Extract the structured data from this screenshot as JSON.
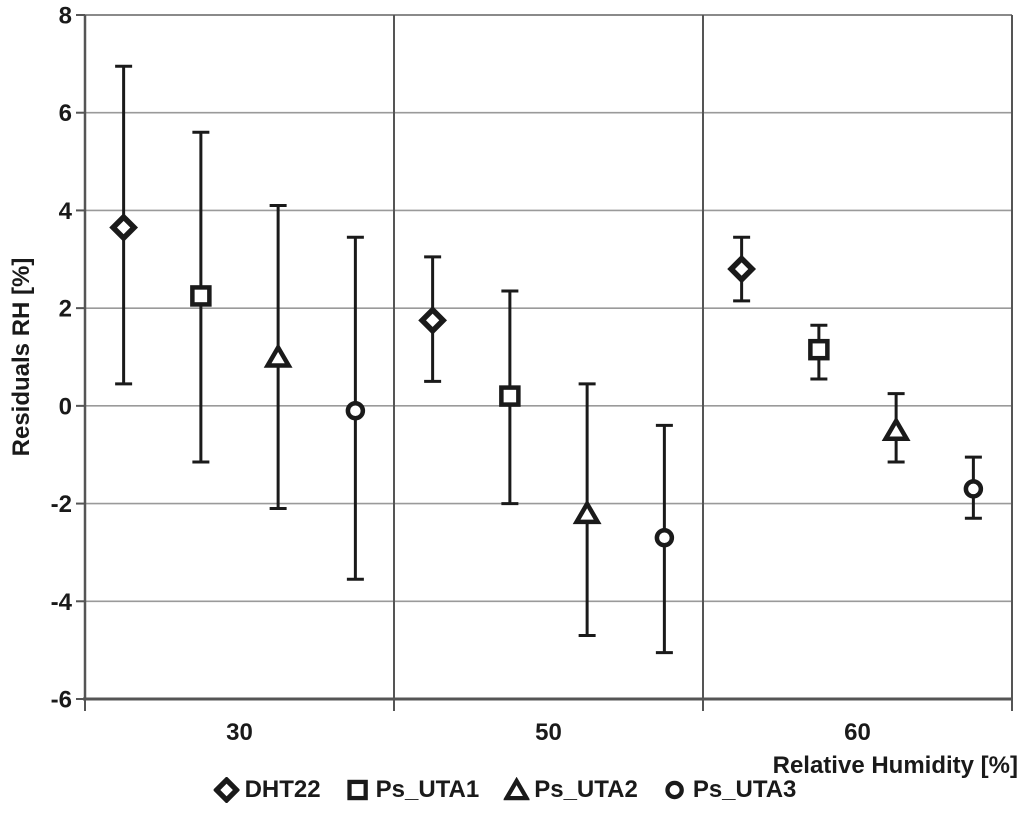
{
  "chart_data": {
    "type": "scatter",
    "subtype": "points-with-error-bars",
    "title": "",
    "xlabel": "Relative Humidity [%]",
    "ylabel": "Residuals RH [%]",
    "categories": [
      "30",
      "50",
      "60"
    ],
    "y_ticks": [
      8,
      6,
      4,
      2,
      0,
      -2,
      -4,
      -6
    ],
    "ylim": [
      -6,
      8
    ],
    "grid": {
      "horizontal": true,
      "vertical_category_separators": true
    },
    "legend_position": "bottom-center",
    "series": [
      {
        "name": "DHT22",
        "marker": "diamond",
        "points": [
          {
            "category": "30",
            "y": 3.65,
            "lo": 0.45,
            "hi": 6.95
          },
          {
            "category": "50",
            "y": 1.75,
            "lo": 0.5,
            "hi": 3.05
          },
          {
            "category": "60",
            "y": 2.8,
            "lo": 2.15,
            "hi": 3.45
          }
        ]
      },
      {
        "name": "Ps_UTA1",
        "marker": "square",
        "points": [
          {
            "category": "30",
            "y": 2.25,
            "lo": -1.15,
            "hi": 5.6
          },
          {
            "category": "50",
            "y": 0.2,
            "lo": -2.0,
            "hi": 2.35
          },
          {
            "category": "60",
            "y": 1.15,
            "lo": 0.55,
            "hi": 1.65
          }
        ]
      },
      {
        "name": "Ps_UTA2",
        "marker": "triangle",
        "points": [
          {
            "category": "30",
            "y": 1.0,
            "lo": -2.1,
            "hi": 4.1
          },
          {
            "category": "50",
            "y": -2.2,
            "lo": -4.7,
            "hi": 0.45
          },
          {
            "category": "60",
            "y": -0.5,
            "lo": -1.15,
            "hi": 0.25
          }
        ]
      },
      {
        "name": "Ps_UTA3",
        "marker": "circle",
        "points": [
          {
            "category": "30",
            "y": -0.1,
            "lo": -3.55,
            "hi": 3.45
          },
          {
            "category": "50",
            "y": -2.7,
            "lo": -5.05,
            "hi": -0.4
          },
          {
            "category": "60",
            "y": -1.7,
            "lo": -2.3,
            "hi": -1.05
          }
        ]
      }
    ],
    "colors": {
      "marker": "#1a1a1a",
      "gridline": "#9a9a9a",
      "axis": "#555555",
      "text": "#1a1a1a",
      "background": "#ffffff"
    }
  }
}
